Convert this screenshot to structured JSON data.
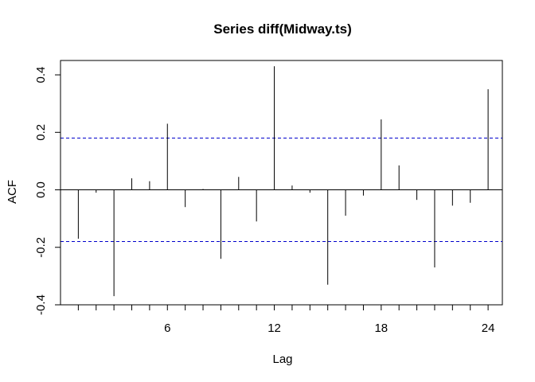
{
  "chart_data": {
    "type": "bar",
    "title": "Series  diff(Midway.ts)",
    "xlabel": "Lag",
    "ylabel": "ACF",
    "xlim": [
      0,
      24.8
    ],
    "ylim": [
      -0.4,
      0.45
    ],
    "x_ticks": [
      6,
      12,
      18,
      24
    ],
    "y_ticks": [
      -0.4,
      -0.2,
      0.0,
      0.2,
      0.4
    ],
    "x_tick_labels": [
      "6",
      "12",
      "18",
      "24"
    ],
    "y_tick_labels": [
      "-0.4",
      "-0.2",
      "0.0",
      "0.2",
      "0.4"
    ],
    "lags": [
      1,
      2,
      3,
      4,
      5,
      6,
      7,
      8,
      9,
      10,
      11,
      12,
      13,
      14,
      15,
      16,
      17,
      18,
      19,
      20,
      21,
      22,
      23,
      24
    ],
    "values": [
      -0.17,
      -0.01,
      -0.37,
      0.04,
      0.03,
      0.23,
      -0.06,
      0.003,
      -0.24,
      0.045,
      -0.11,
      0.43,
      0.015,
      -0.01,
      -0.33,
      -0.09,
      -0.02,
      0.245,
      0.085,
      -0.035,
      -0.27,
      -0.055,
      -0.045,
      0.35
    ],
    "confidence_bound": 0.18,
    "colors": {
      "bars": "#000000",
      "bounds": "#0000cc",
      "axes": "#000000"
    },
    "grid": false
  }
}
